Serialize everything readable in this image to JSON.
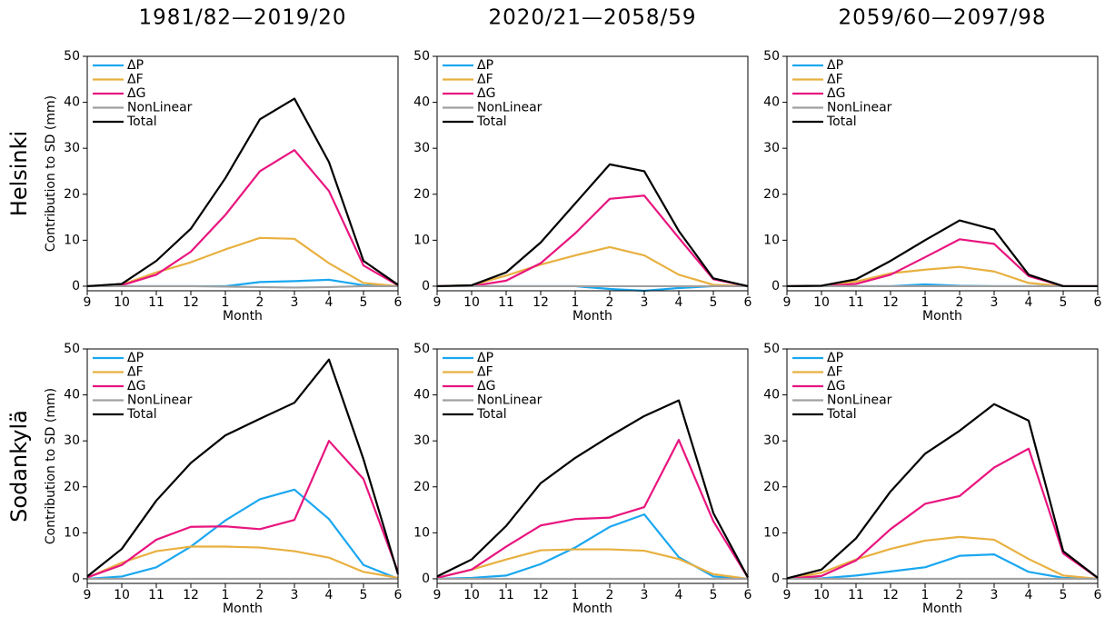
{
  "column_titles": [
    "1981/82—2019/20",
    "2020/21—2058/59",
    "2059/60—2097/98"
  ],
  "row_labels": [
    "Helsinki",
    "Sodankylä"
  ],
  "chart_data": [
    {
      "type": "line",
      "xlabel": "Month",
      "ylabel": "Contribution to SD (mm)",
      "categories": [
        "9",
        "10",
        "11",
        "12",
        "1",
        "2",
        "3",
        "4",
        "5",
        "6"
      ],
      "ylim": [
        -1,
        50
      ],
      "yticks": [
        0,
        10,
        20,
        30,
        40,
        50
      ],
      "series": [
        {
          "name": "ΔP",
          "color": "#1aa7f0",
          "values": [
            0,
            0,
            0,
            0,
            0,
            0.9,
            1.1,
            1.4,
            0.2,
            0
          ]
        },
        {
          "name": "ΔF",
          "color": "#e8b040",
          "values": [
            0,
            0.3,
            3,
            5.2,
            8,
            10.5,
            10.3,
            5,
            0.7,
            0
          ]
        },
        {
          "name": "ΔG",
          "color": "#e8157f",
          "values": [
            0,
            0.2,
            2.5,
            7.5,
            15.5,
            25,
            29.6,
            20.7,
            4.5,
            0.2
          ]
        },
        {
          "name": "NonLinear",
          "color": "#a0a0a0",
          "values": [
            0,
            0,
            0,
            0,
            -0.1,
            -0.2,
            -0.3,
            -0.2,
            0,
            0
          ]
        },
        {
          "name": "Total",
          "color": "#000000",
          "values": [
            0,
            0.5,
            5.5,
            12.5,
            23.5,
            36.3,
            40.8,
            27,
            5.5,
            0.3
          ]
        }
      ]
    },
    {
      "type": "line",
      "xlabel": "Month",
      "categories": [
        "9",
        "10",
        "11",
        "12",
        "1",
        "2",
        "3",
        "4",
        "5",
        "6"
      ],
      "ylim": [
        -1,
        50
      ],
      "yticks": [
        0,
        10,
        20,
        30,
        40,
        50
      ],
      "series": [
        {
          "name": "ΔP",
          "color": "#1aa7f0",
          "values": [
            0,
            0,
            0,
            0,
            0,
            -0.6,
            -1,
            -0.4,
            0,
            0
          ]
        },
        {
          "name": "ΔF",
          "color": "#e8b040",
          "values": [
            0,
            0.2,
            2.3,
            4.7,
            6.7,
            8.5,
            6.7,
            2.5,
            0.3,
            0
          ]
        },
        {
          "name": "ΔG",
          "color": "#e8157f",
          "values": [
            0,
            0,
            1.2,
            5,
            11.5,
            19,
            19.7,
            10.5,
            1.5,
            0
          ]
        },
        {
          "name": "NonLinear",
          "color": "#a0a0a0",
          "values": [
            0,
            0,
            0,
            0,
            0,
            0,
            0,
            0,
            0,
            0
          ]
        },
        {
          "name": "Total",
          "color": "#000000",
          "values": [
            0,
            0.2,
            3,
            9.5,
            18,
            26.5,
            25,
            12,
            1.7,
            0
          ]
        }
      ]
    },
    {
      "type": "line",
      "xlabel": "Month",
      "categories": [
        "9",
        "10",
        "11",
        "12",
        "1",
        "2",
        "3",
        "4",
        "5",
        "6"
      ],
      "ylim": [
        -1,
        50
      ],
      "yticks": [
        0,
        10,
        20,
        30,
        40,
        50
      ],
      "series": [
        {
          "name": "ΔP",
          "color": "#1aa7f0",
          "values": [
            0,
            0,
            0,
            0,
            0.4,
            0.1,
            0,
            0,
            0,
            0
          ]
        },
        {
          "name": "ΔF",
          "color": "#e8b040",
          "values": [
            0,
            0.1,
            1,
            2.8,
            3.6,
            4.2,
            3.2,
            0.7,
            0,
            0
          ]
        },
        {
          "name": "ΔG",
          "color": "#e8157f",
          "values": [
            0,
            0,
            0.5,
            2.5,
            6.3,
            10.2,
            9.2,
            2.2,
            0,
            0
          ]
        },
        {
          "name": "NonLinear",
          "color": "#a0a0a0",
          "values": [
            0,
            0,
            0,
            0,
            0,
            0,
            0,
            0,
            0,
            0
          ]
        },
        {
          "name": "Total",
          "color": "#000000",
          "values": [
            0,
            0.1,
            1.5,
            5.5,
            10,
            14.3,
            12.3,
            2.5,
            0,
            0
          ]
        }
      ]
    },
    {
      "type": "line",
      "xlabel": "Month",
      "ylabel": "Contribution to SD (mm)",
      "categories": [
        "9",
        "10",
        "11",
        "12",
        "1",
        "2",
        "3",
        "4",
        "5",
        "6"
      ],
      "ylim": [
        -1,
        50
      ],
      "yticks": [
        0,
        10,
        20,
        30,
        40,
        50
      ],
      "series": [
        {
          "name": "ΔP",
          "color": "#1aa7f0",
          "values": [
            0,
            0.5,
            2.5,
            7,
            12.7,
            17.3,
            19.4,
            13,
            3,
            0
          ]
        },
        {
          "name": "ΔF",
          "color": "#e8b040",
          "values": [
            0.2,
            3.5,
            6,
            7,
            7,
            6.8,
            6,
            4.6,
            1.5,
            0.2
          ]
        },
        {
          "name": "ΔG",
          "color": "#e8157f",
          "values": [
            0.3,
            3,
            8.5,
            11.3,
            11.4,
            10.8,
            12.8,
            30,
            21.7,
            1.5
          ]
        },
        {
          "name": "NonLinear",
          "color": "#a0a0a0",
          "values": [
            0,
            0,
            0,
            0,
            0,
            0,
            0,
            0,
            0,
            0
          ]
        },
        {
          "name": "Total",
          "color": "#000000",
          "values": [
            0.5,
            6.5,
            17,
            25.2,
            31.2,
            34.8,
            38.3,
            47.7,
            26,
            1
          ]
        }
      ]
    },
    {
      "type": "line",
      "xlabel": "Month",
      "categories": [
        "9",
        "10",
        "11",
        "12",
        "1",
        "2",
        "3",
        "4",
        "5",
        "6"
      ],
      "ylim": [
        -1,
        50
      ],
      "yticks": [
        0,
        10,
        20,
        30,
        40,
        50
      ],
      "series": [
        {
          "name": "ΔP",
          "color": "#1aa7f0",
          "values": [
            0,
            0.2,
            0.7,
            3.2,
            6.8,
            11.3,
            14,
            4.7,
            0.5,
            0
          ]
        },
        {
          "name": "ΔF",
          "color": "#e8b040",
          "values": [
            0.2,
            2,
            4.2,
            6.2,
            6.4,
            6.4,
            6.1,
            4.3,
            1,
            0
          ]
        },
        {
          "name": "ΔG",
          "color": "#e8157f",
          "values": [
            0.2,
            2,
            7,
            11.6,
            13,
            13.3,
            15.6,
            30.2,
            12.5,
            0.3
          ]
        },
        {
          "name": "NonLinear",
          "color": "#a0a0a0",
          "values": [
            0,
            0,
            0,
            0,
            0,
            0,
            0,
            0,
            0,
            0
          ]
        },
        {
          "name": "Total",
          "color": "#000000",
          "values": [
            0.5,
            4.2,
            11.5,
            20.8,
            26.3,
            31,
            35.4,
            38.8,
            14.3,
            0.3
          ]
        }
      ]
    },
    {
      "type": "line",
      "xlabel": "Month",
      "categories": [
        "9",
        "10",
        "11",
        "12",
        "1",
        "2",
        "3",
        "4",
        "5",
        "6"
      ],
      "ylim": [
        -1,
        50
      ],
      "yticks": [
        0,
        10,
        20,
        30,
        40,
        50
      ],
      "series": [
        {
          "name": "ΔP",
          "color": "#1aa7f0",
          "values": [
            0,
            0.1,
            0.7,
            1.6,
            2.5,
            5,
            5.3,
            1.5,
            0.2,
            0
          ]
        },
        {
          "name": "ΔF",
          "color": "#e8b040",
          "values": [
            0,
            1.3,
            4.2,
            6.5,
            8.3,
            9.1,
            8.5,
            4.3,
            0.7,
            0
          ]
        },
        {
          "name": "ΔG",
          "color": "#e8157f",
          "values": [
            0,
            0.6,
            4,
            10.8,
            16.3,
            18,
            24.2,
            28.3,
            5.5,
            0.2
          ]
        },
        {
          "name": "NonLinear",
          "color": "#a0a0a0",
          "values": [
            0,
            0,
            0,
            0,
            0,
            0,
            0,
            0,
            0,
            0
          ]
        },
        {
          "name": "Total",
          "color": "#000000",
          "values": [
            0.1,
            2,
            8.8,
            19,
            27.2,
            32.2,
            38,
            34.4,
            6,
            0.2
          ]
        }
      ]
    }
  ]
}
